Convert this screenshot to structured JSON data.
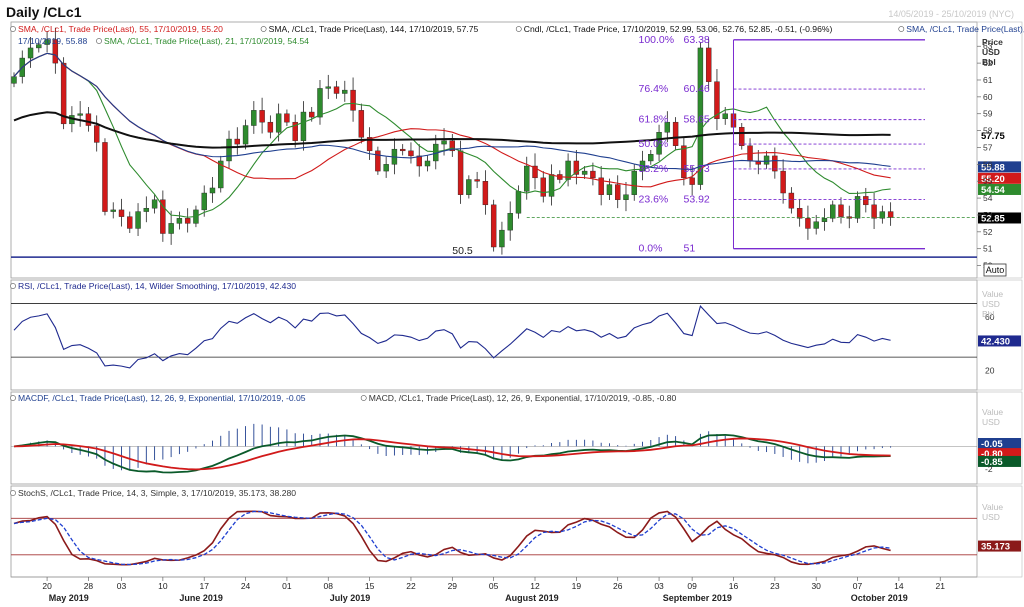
{
  "window": {
    "title": "Daily /CLc1",
    "date_range": "14/05/2019 - 25/10/2019 (NYC)",
    "auto_label": "Auto"
  },
  "price_axis": {
    "title": [
      "Price",
      "USD",
      "Bbl"
    ]
  },
  "value_axis": {
    "title": [
      "Value",
      "USD"
    ],
    "title_bbl": [
      "Value",
      "USD",
      "Bbl"
    ]
  },
  "panels": [
    {
      "id": "price",
      "legends": [
        {
          "text": "SMA, /CLc1, Trade Price(Last), 55, 17/10/2019, 55.20",
          "color": "#d11a1a"
        },
        {
          "text": "SMA, /CLc1, Trade Price(Last), 144, 17/10/2019, 57.75",
          "color": "#111111"
        },
        {
          "text": "Cndl, /CLc1, Trade Price, 17/10/2019, 52.99, 53.06, 52.76, 52.85, -0.51, (-0.96%)",
          "color": "#111111"
        },
        {
          "text": "SMA, /CLc1, Trade Price(Last), 89,",
          "color": "#1f3f8f"
        },
        {
          "text": "17/10/2019, 55.88",
          "color": "#1f3f8f"
        },
        {
          "text": "SMA, /CLc1, Trade Price(Last), 21, 17/10/2019, 54.54",
          "color": "#2e8b2e"
        }
      ]
    },
    {
      "id": "rsi",
      "legends": [
        {
          "text": "RSI, /CLc1, Trade Price(Last), 14, Wilder Smoothing, 17/10/2019, 42.430",
          "color": "#1f2a8f"
        }
      ]
    },
    {
      "id": "macd",
      "legends": [
        {
          "text": "MACDF, /CLc1, Trade Price(Last), 12, 26, 9, Exponential, 17/10/2019, -0.05",
          "color": "#1f3f8f"
        },
        {
          "text": "MACD, /CLc1, Trade Price(Last), 12, 26, 9, Exponential, 17/10/2019, -0.85, -0.80",
          "color": "#333333"
        }
      ]
    },
    {
      "id": "stoch",
      "legends": [
        {
          "text": "StochS, /CLc1, Trade Price, 14, 3, Simple, 3, 17/10/2019, 35.173, 38.280",
          "color": "#333333"
        }
      ]
    }
  ],
  "chart_data": [
    {
      "type": "candlestick",
      "title": "Daily /CLc1",
      "ylim": [
        49.5,
        64.2
      ],
      "yticks": [
        50,
        51,
        52,
        53,
        54,
        55,
        56,
        57,
        58,
        59,
        60,
        61,
        62,
        63
      ],
      "month_labels": [
        {
          "label": "May 2019",
          "day": 3
        },
        {
          "label": "June 2019",
          "day": 19
        },
        {
          "label": "July 2019",
          "day": 37
        },
        {
          "label": "August 2019",
          "day": 59
        },
        {
          "label": "September 2019",
          "day": 79
        },
        {
          "label": "October 2019",
          "day": 101
        }
      ],
      "day_labels": [
        {
          "label": "20",
          "day": 4
        },
        {
          "label": "28",
          "day": 9
        },
        {
          "label": "03",
          "day": 13
        },
        {
          "label": "10",
          "day": 18
        },
        {
          "label": "17",
          "day": 23
        },
        {
          "label": "24",
          "day": 28
        },
        {
          "label": "01",
          "day": 33
        },
        {
          "label": "08",
          "day": 38
        },
        {
          "label": "15",
          "day": 43
        },
        {
          "label": "22",
          "day": 48
        },
        {
          "label": "29",
          "day": 53
        },
        {
          "label": "05",
          "day": 58
        },
        {
          "label": "12",
          "day": 63
        },
        {
          "label": "19",
          "day": 68
        },
        {
          "label": "26",
          "day": 73
        },
        {
          "label": "03",
          "day": 78
        },
        {
          "label": "09",
          "day": 82
        },
        {
          "label": "16",
          "day": 87
        },
        {
          "label": "23",
          "day": 92
        },
        {
          "label": "30",
          "day": 97
        },
        {
          "label": "07",
          "day": 102
        },
        {
          "label": "14",
          "day": 107
        },
        {
          "label": "21",
          "day": 112
        }
      ],
      "closes": [
        61.2,
        62.3,
        62.9,
        63.1,
        63.4,
        62.0,
        58.4,
        58.9,
        59.0,
        58.3,
        57.3,
        53.2,
        53.3,
        52.9,
        52.2,
        53.2,
        53.4,
        53.9,
        51.9,
        52.5,
        52.8,
        52.5,
        53.3,
        54.3,
        54.6,
        56.2,
        57.5,
        57.2,
        58.3,
        59.2,
        58.5,
        57.9,
        59.0,
        58.5,
        57.4,
        59.1,
        58.8,
        60.5,
        60.6,
        60.2,
        60.4,
        59.2,
        57.6,
        56.8,
        55.6,
        56.0,
        56.9,
        56.8,
        56.5,
        55.9,
        56.2,
        57.2,
        57.4,
        56.8,
        54.2,
        55.1,
        55.0,
        53.6,
        51.1,
        52.1,
        53.1,
        54.4,
        55.9,
        55.2,
        54.1,
        55.4,
        55.1,
        56.2,
        55.4,
        55.6,
        55.2,
        54.2,
        54.8,
        53.9,
        54.2,
        55.6,
        56.2,
        56.6,
        57.9,
        58.5,
        57.1,
        55.2,
        54.8,
        62.9,
        60.9,
        58.7,
        59.0,
        58.2,
        57.1,
        56.2,
        56.0,
        56.5,
        55.6,
        54.3,
        53.4,
        52.8,
        52.2,
        52.6,
        52.8,
        53.6,
        52.9,
        52.8,
        54.1,
        53.6,
        52.8,
        53.2,
        52.85
      ],
      "fibonacci": [
        {
          "label": "100.0%",
          "value": 63.38,
          "value_label": "63.38"
        },
        {
          "label": "76.4%",
          "value": 60.46,
          "value_label": "60.46"
        },
        {
          "label": "61.8%",
          "value": 58.65,
          "value_label": "58.65"
        },
        {
          "label": "50.0%",
          "value": 57.2,
          "value_label": ""
        },
        {
          "label": "38.2%",
          "value": 55.73,
          "value_label": "55.73"
        },
        {
          "label": "23.6%",
          "value": 53.92,
          "value_label": "53.92"
        },
        {
          "label": "0.0%",
          "value": 51,
          "value_label": "51"
        }
      ],
      "support": {
        "value": 50.5,
        "label": "50.5"
      },
      "last_price": {
        "value": 52.85,
        "label": "52.85"
      },
      "tags": [
        {
          "label": "57.75",
          "value": 57.75,
          "bg": "#ffffff",
          "fg": "#000000"
        },
        {
          "label": "55.88",
          "value": 55.88,
          "bg": "#1f3f8f",
          "fg": "#ffffff"
        },
        {
          "label": "55.20",
          "value": 55.2,
          "bg": "#d11a1a",
          "fg": "#ffffff"
        },
        {
          "label": "54.54",
          "value": 54.54,
          "bg": "#2e8b2e",
          "fg": "#ffffff"
        },
        {
          "label": "52.85",
          "value": 52.85,
          "bg": "#000000",
          "fg": "#ffffff"
        }
      ],
      "series": [
        {
          "name": "SMA 55",
          "color": "#d11a1a",
          "period": 55,
          "last": 55.2
        },
        {
          "name": "SMA 144",
          "color": "#111111",
          "period": 144,
          "last": 57.75
        },
        {
          "name": "SMA 89",
          "color": "#1f3f8f",
          "period": 89,
          "last": 55.88
        },
        {
          "name": "SMA 21",
          "color": "#2e8b2e",
          "period": 21,
          "last": 54.54
        }
      ],
      "colors": {
        "up": "#2e8b2e",
        "down": "#d11a1a",
        "fib": "#7a2bd0",
        "support": "#1f2a8f"
      }
    },
    {
      "type": "line",
      "name": "RSI",
      "ylim": [
        10,
        80
      ],
      "yticks": [
        20,
        60
      ],
      "levels": [
        70,
        30
      ],
      "last_label": "42.430",
      "color": "#1f2a8f"
    },
    {
      "type": "line",
      "name": "MACD",
      "ylim": [
        -3,
        3.6
      ],
      "yticks": [
        -2
      ],
      "tags": [
        {
          "label": "-0.05",
          "value": 0.3,
          "bg": "#1f3f8f",
          "fg": "#ffffff"
        },
        {
          "label": "-0.80",
          "value": -0.6,
          "bg": "#d11a1a",
          "fg": "#ffffff"
        },
        {
          "label": "-0.85",
          "value": -1.3,
          "bg": "#0a5a2a",
          "fg": "#ffffff"
        }
      ],
      "colors": {
        "macd": "#0a5a2a",
        "signal": "#d11a1a",
        "hist": "#1f3f8f"
      }
    },
    {
      "type": "line",
      "name": "StochS",
      "ylim": [
        0,
        110
      ],
      "levels": [
        80,
        20
      ],
      "last_label": "35.173",
      "colors": {
        "k": "#8b1a1a",
        "d": "#1f3fd0",
        "levels": "#a33333"
      }
    }
  ]
}
